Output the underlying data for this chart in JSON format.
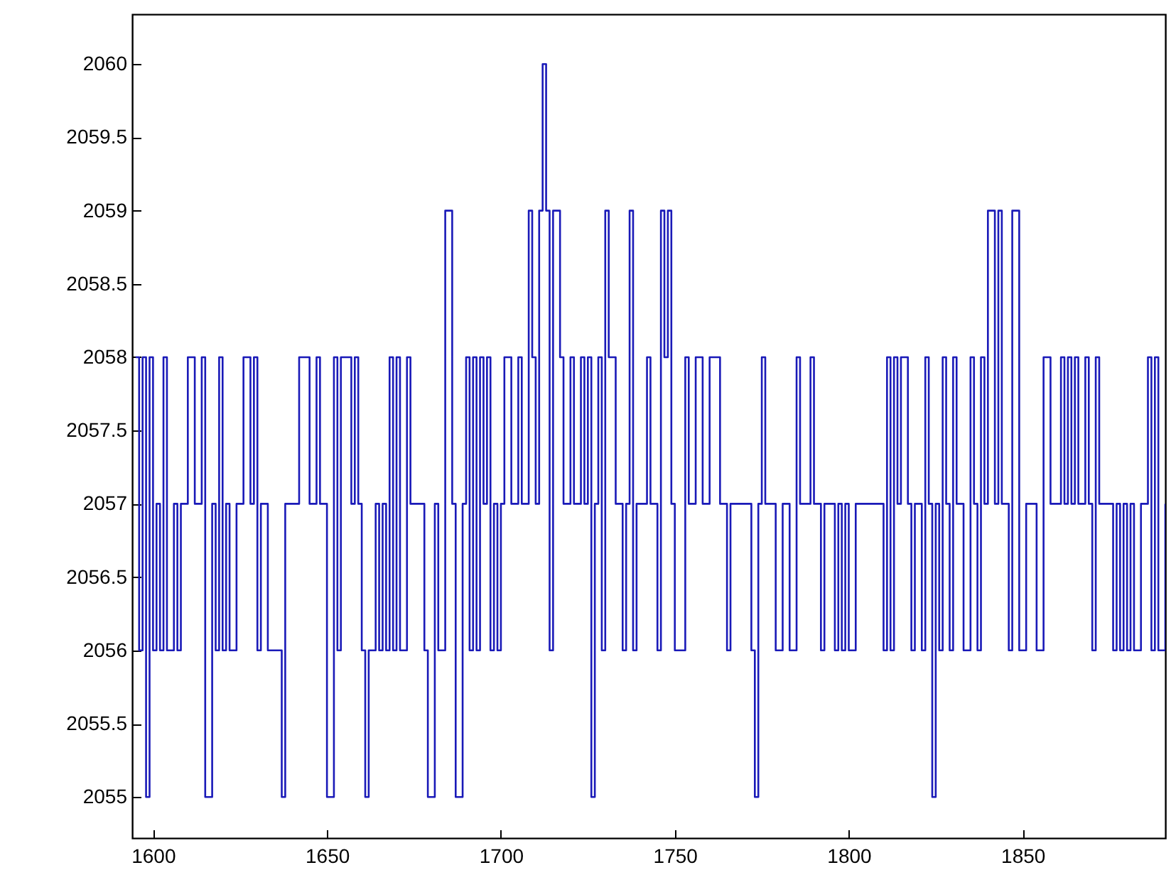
{
  "chart_data": {
    "type": "step",
    "xlim": [
      1594,
      1891
    ],
    "xticks": [
      1600,
      1650,
      1700,
      1750,
      1800,
      1850
    ],
    "ylim": [
      2054.72,
      2060.34
    ],
    "yticks": [
      2055,
      2055.5,
      2056,
      2056.5,
      2057,
      2057.5,
      2058,
      2058.5,
      2059,
      2059.5,
      2060
    ],
    "grid": false,
    "series": [
      {
        "color": "#1a1ab8",
        "x": [
          1595,
          1596,
          1597,
          1598,
          1599,
          1600,
          1601,
          1602,
          1603,
          1604,
          1606,
          1607,
          1608,
          1610,
          1612,
          1614,
          1615,
          1617,
          1618,
          1619,
          1620,
          1621,
          1622,
          1624,
          1626,
          1628,
          1629,
          1630,
          1631,
          1633,
          1637,
          1638,
          1642,
          1645,
          1647,
          1648,
          1650,
          1652,
          1653,
          1654,
          1657,
          1658,
          1659,
          1660,
          1661,
          1662,
          1664,
          1665,
          1666,
          1667,
          1668,
          1669,
          1670,
          1671,
          1673,
          1674,
          1678,
          1679,
          1681,
          1682,
          1684,
          1686,
          1687,
          1689,
          1690,
          1691,
          1692,
          1693,
          1694,
          1695,
          1696,
          1697,
          1698,
          1699,
          1700,
          1701,
          1703,
          1705,
          1706,
          1708,
          1709,
          1710,
          1711,
          1712,
          1713,
          1714,
          1715,
          1717,
          1718,
          1720,
          1721,
          1723,
          1724,
          1725,
          1726,
          1727,
          1728,
          1729,
          1730,
          1731,
          1733,
          1735,
          1736,
          1737,
          1738,
          1739,
          1742,
          1743,
          1745,
          1746,
          1747,
          1748,
          1749,
          1750,
          1753,
          1754,
          1756,
          1758,
          1760,
          1763,
          1765,
          1766,
          1772,
          1773,
          1774,
          1775,
          1776,
          1779,
          1781,
          1783,
          1785,
          1786,
          1789,
          1790,
          1792,
          1793,
          1796,
          1797,
          1798,
          1799,
          1800,
          1802,
          1810,
          1811,
          1812,
          1813,
          1814,
          1815,
          1817,
          1818,
          1819,
          1821,
          1822,
          1823,
          1824,
          1825,
          1826,
          1827,
          1828,
          1829,
          1830,
          1831,
          1833,
          1835,
          1836,
          1837,
          1838,
          1839,
          1840,
          1842,
          1843,
          1844,
          1846,
          1847,
          1849,
          1851,
          1854,
          1856,
          1858,
          1861,
          1862,
          1863,
          1864,
          1865,
          1866,
          1868,
          1869,
          1870,
          1871,
          1872,
          1876,
          1877,
          1878,
          1879,
          1880,
          1881,
          1882,
          1884,
          1886,
          1887,
          1888,
          1889,
          1891
        ],
        "values": [
          2058,
          2056,
          2058,
          2055,
          2058,
          2056,
          2057,
          2056,
          2058,
          2056,
          2057,
          2056,
          2057,
          2058,
          2057,
          2058,
          2055,
          2057,
          2056,
          2058,
          2056,
          2057,
          2056,
          2057,
          2058,
          2057,
          2058,
          2056,
          2057,
          2056,
          2055,
          2057,
          2058,
          2057,
          2058,
          2057,
          2055,
          2058,
          2056,
          2058,
          2057,
          2058,
          2057,
          2056,
          2055,
          2056,
          2057,
          2056,
          2057,
          2056,
          2058,
          2056,
          2058,
          2056,
          2058,
          2057,
          2056,
          2055,
          2057,
          2056,
          2059,
          2057,
          2055,
          2057,
          2058,
          2056,
          2058,
          2056,
          2058,
          2057,
          2058,
          2056,
          2057,
          2056,
          2057,
          2058,
          2057,
          2058,
          2057,
          2059,
          2058,
          2057,
          2059,
          2060,
          2059,
          2056,
          2059,
          2058,
          2057,
          2058,
          2057,
          2058,
          2057,
          2058,
          2055,
          2057,
          2058,
          2056,
          2059,
          2058,
          2057,
          2056,
          2057,
          2059,
          2056,
          2057,
          2058,
          2057,
          2056,
          2059,
          2058,
          2059,
          2057,
          2056,
          2058,
          2057,
          2058,
          2057,
          2058,
          2057,
          2056,
          2057,
          2056,
          2055,
          2057,
          2058,
          2057,
          2056,
          2057,
          2056,
          2058,
          2057,
          2058,
          2057,
          2056,
          2057,
          2056,
          2057,
          2056,
          2057,
          2056,
          2057,
          2056,
          2058,
          2056,
          2058,
          2057,
          2058,
          2057,
          2056,
          2057,
          2056,
          2058,
          2057,
          2055,
          2057,
          2056,
          2058,
          2057,
          2056,
          2058,
          2057,
          2056,
          2058,
          2057,
          2056,
          2058,
          2057,
          2059,
          2057,
          2059,
          2057,
          2056,
          2059,
          2056,
          2057,
          2056,
          2058,
          2057,
          2058,
          2057,
          2058,
          2057,
          2058,
          2057,
          2058,
          2057,
          2056,
          2058,
          2057,
          2056,
          2057,
          2056,
          2057,
          2056,
          2057,
          2056,
          2057,
          2058,
          2056,
          2058,
          2056,
          2057
        ]
      }
    ]
  }
}
